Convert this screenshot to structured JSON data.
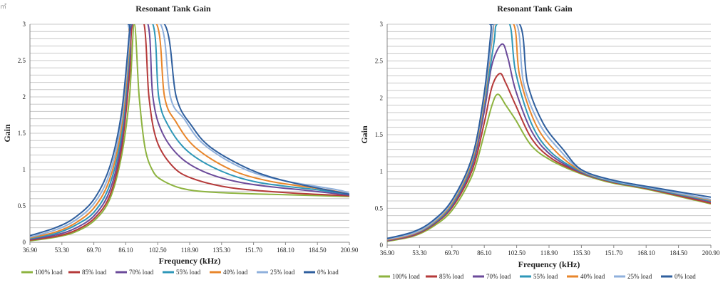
{
  "chart_data": [
    {
      "type": "line",
      "title": "Resonant Tank Gain",
      "xlabel": "Frequency (kHz)",
      "ylabel": "Gain",
      "ylim": [
        0,
        3
      ],
      "xlim": [
        36.9,
        200.9
      ],
      "yticks": [
        "0",
        "0.5",
        "1",
        "1.5",
        "2",
        "2.5",
        "3"
      ],
      "xticks": [
        "36.90",
        "53.30",
        "69.70",
        "86.10",
        "102.50",
        "118.90",
        "135.30",
        "151.70",
        "168.10",
        "184.50",
        "200.90"
      ],
      "grid": true,
      "legend": "bottom",
      "series": [
        {
          "name": "100% load",
          "color": "#8db33f",
          "values": [
            [
              36.9,
              0.02
            ],
            [
              50,
              0.07
            ],
            [
              60,
              0.14
            ],
            [
              70,
              0.3
            ],
            [
              78,
              0.6
            ],
            [
              84,
              1.2
            ],
            [
              88,
              2.0
            ],
            [
              90.5,
              3.0
            ],
            [
              93,
              2.0
            ],
            [
              96,
              1.3
            ],
            [
              100,
              0.98
            ],
            [
              105,
              0.85
            ],
            [
              115,
              0.74
            ],
            [
              130,
              0.69
            ],
            [
              160,
              0.66
            ],
            [
              200.9,
              0.63
            ]
          ]
        },
        {
          "name": "85% load",
          "color": "#b53a3a",
          "values": [
            [
              36.9,
              0.03
            ],
            [
              50,
              0.08
            ],
            [
              60,
              0.16
            ],
            [
              70,
              0.33
            ],
            [
              78,
              0.65
            ],
            [
              84,
              1.3
            ],
            [
              88,
              2.3
            ],
            [
              89.6,
              3.0
            ],
            [
              95.5,
              3.0
            ],
            [
              98,
              2.0
            ],
            [
              102,
              1.4
            ],
            [
              110,
              1.05
            ],
            [
              120,
              0.88
            ],
            [
              140,
              0.75
            ],
            [
              170,
              0.68
            ],
            [
              200.9,
              0.64
            ]
          ]
        },
        {
          "name": "70% load",
          "color": "#6b4a9a",
          "values": [
            [
              36.9,
              0.04
            ],
            [
              50,
              0.1
            ],
            [
              60,
              0.19
            ],
            [
              70,
              0.37
            ],
            [
              78,
              0.72
            ],
            [
              84,
              1.4
            ],
            [
              88,
              2.5
            ],
            [
              89.3,
              3.0
            ],
            [
              97.5,
              3.0
            ],
            [
              100,
              2.0
            ],
            [
              105,
              1.5
            ],
            [
              115,
              1.15
            ],
            [
              130,
              0.93
            ],
            [
              150,
              0.8
            ],
            [
              180,
              0.71
            ],
            [
              200.9,
              0.65
            ]
          ]
        },
        {
          "name": "55% load",
          "color": "#2e97b8",
          "values": [
            [
              36.9,
              0.05
            ],
            [
              50,
              0.12
            ],
            [
              60,
              0.23
            ],
            [
              70,
              0.42
            ],
            [
              78,
              0.8
            ],
            [
              84,
              1.5
            ],
            [
              88,
              2.6
            ],
            [
              89,
              3.0
            ],
            [
              100,
              3.0
            ],
            [
              103,
              2.0
            ],
            [
              108,
              1.6
            ],
            [
              118,
              1.25
            ],
            [
              135,
              0.98
            ],
            [
              155,
              0.82
            ],
            [
              185,
              0.72
            ],
            [
              200.9,
              0.66
            ]
          ]
        },
        {
          "name": "40% load",
          "color": "#e8862b",
          "values": [
            [
              36.9,
              0.06
            ],
            [
              50,
              0.14
            ],
            [
              60,
              0.26
            ],
            [
              70,
              0.48
            ],
            [
              78,
              0.88
            ],
            [
              84,
              1.6
            ],
            [
              88,
              2.7
            ],
            [
              88.8,
              3.0
            ],
            [
              102,
              3.0
            ],
            [
              106,
              2.0
            ],
            [
              112,
              1.65
            ],
            [
              122,
              1.3
            ],
            [
              140,
              1.0
            ],
            [
              160,
              0.84
            ],
            [
              190,
              0.72
            ],
            [
              200.9,
              0.66
            ]
          ]
        },
        {
          "name": "25% load",
          "color": "#8fb0dc",
          "values": [
            [
              36.9,
              0.07
            ],
            [
              50,
              0.17
            ],
            [
              60,
              0.3
            ],
            [
              70,
              0.54
            ],
            [
              78,
              0.96
            ],
            [
              84,
              1.7
            ],
            [
              88,
              2.8
            ],
            [
              88.6,
              3.0
            ],
            [
              104,
              3.0
            ],
            [
              109,
              2.0
            ],
            [
              116,
              1.7
            ],
            [
              126,
              1.35
            ],
            [
              145,
              1.03
            ],
            [
              165,
              0.86
            ],
            [
              195,
              0.72
            ],
            [
              200.9,
              0.67
            ]
          ]
        },
        {
          "name": "0% load",
          "color": "#2f5f9e",
          "values": [
            [
              36.9,
              0.09
            ],
            [
              50,
              0.2
            ],
            [
              60,
              0.34
            ],
            [
              70,
              0.6
            ],
            [
              78,
              1.05
            ],
            [
              84,
              1.8
            ],
            [
              88,
              2.9
            ],
            [
              88.4,
              3.0
            ],
            [
              106,
              3.0
            ],
            [
              112,
              2.0
            ],
            [
              120,
              1.6
            ],
            [
              130,
              1.3
            ],
            [
              150,
              1.0
            ],
            [
              170,
              0.83
            ],
            [
              200.9,
              0.66
            ]
          ]
        }
      ]
    },
    {
      "type": "line",
      "title": "Resonant Tank Gain",
      "xlabel": "Frequency (kHz)",
      "ylabel": "Gain",
      "ylim": [
        0,
        3
      ],
      "xlim": [
        36.9,
        200.9
      ],
      "yticks": [
        "0",
        "0.5",
        "1",
        "1.5",
        "2",
        "2.5",
        "3"
      ],
      "xticks": [
        "36.90",
        "53.30",
        "69.70",
        "86.10",
        "102.50",
        "118.90",
        "135.30",
        "151.70",
        "168.10",
        "184.50",
        "200.90"
      ],
      "grid": true,
      "legend": "bottom",
      "series": [
        {
          "name": "100% load",
          "color": "#8db33f",
          "values": [
            [
              36.9,
              0.05
            ],
            [
              50,
              0.12
            ],
            [
              60,
              0.25
            ],
            [
              70,
              0.48
            ],
            [
              80,
              0.95
            ],
            [
              86,
              1.5
            ],
            [
              90,
              1.9
            ],
            [
              93,
              2.05
            ],
            [
              97,
              1.9
            ],
            [
              102,
              1.7
            ],
            [
              110,
              1.35
            ],
            [
              120,
              1.15
            ],
            [
              135,
              0.97
            ],
            [
              150,
              0.85
            ],
            [
              170,
              0.75
            ],
            [
              200.9,
              0.56
            ]
          ]
        },
        {
          "name": "85% load",
          "color": "#b53a3a",
          "values": [
            [
              36.9,
              0.06
            ],
            [
              50,
              0.13
            ],
            [
              60,
              0.27
            ],
            [
              70,
              0.52
            ],
            [
              80,
              1.02
            ],
            [
              86,
              1.65
            ],
            [
              90,
              2.15
            ],
            [
              94,
              2.33
            ],
            [
              97,
              2.2
            ],
            [
              102,
              1.9
            ],
            [
              110,
              1.45
            ],
            [
              120,
              1.18
            ],
            [
              135,
              0.98
            ],
            [
              150,
              0.86
            ],
            [
              170,
              0.76
            ],
            [
              200.9,
              0.57
            ]
          ]
        },
        {
          "name": "70% load",
          "color": "#6b4a9a",
          "values": [
            [
              36.9,
              0.06
            ],
            [
              50,
              0.14
            ],
            [
              60,
              0.28
            ],
            [
              70,
              0.54
            ],
            [
              80,
              1.08
            ],
            [
              86,
              1.8
            ],
            [
              90,
              2.45
            ],
            [
              95,
              2.73
            ],
            [
              98,
              2.55
            ],
            [
              102,
              2.1
            ],
            [
              110,
              1.55
            ],
            [
              120,
              1.22
            ],
            [
              135,
              0.99
            ],
            [
              150,
              0.87
            ],
            [
              170,
              0.77
            ],
            [
              200.9,
              0.59
            ]
          ]
        },
        {
          "name": "55% load",
          "color": "#2e97b8",
          "values": [
            [
              36.9,
              0.07
            ],
            [
              50,
              0.15
            ],
            [
              60,
              0.29
            ],
            [
              70,
              0.56
            ],
            [
              80,
              1.12
            ],
            [
              86,
              1.9
            ],
            [
              91,
              2.75
            ],
            [
              92.5,
              3.0
            ],
            [
              99,
              3.0
            ],
            [
              102,
              2.35
            ],
            [
              110,
              1.65
            ],
            [
              120,
              1.26
            ],
            [
              135,
              1.0
            ],
            [
              150,
              0.87
            ],
            [
              170,
              0.77
            ],
            [
              200.9,
              0.6
            ]
          ]
        },
        {
          "name": "40% load",
          "color": "#e8862b",
          "values": [
            [
              36.9,
              0.07
            ],
            [
              50,
              0.15
            ],
            [
              60,
              0.3
            ],
            [
              70,
              0.58
            ],
            [
              80,
              1.15
            ],
            [
              86,
              1.95
            ],
            [
              90.5,
              2.9
            ],
            [
              91.5,
              3.0
            ],
            [
              101,
              3.0
            ],
            [
              104,
              2.3
            ],
            [
              112,
              1.65
            ],
            [
              122,
              1.28
            ],
            [
              135,
              1.01
            ],
            [
              150,
              0.88
            ],
            [
              170,
              0.78
            ],
            [
              200.9,
              0.61
            ]
          ]
        },
        {
          "name": "25% load",
          "color": "#8fb0dc",
          "values": [
            [
              36.9,
              0.08
            ],
            [
              50,
              0.16
            ],
            [
              60,
              0.31
            ],
            [
              70,
              0.6
            ],
            [
              80,
              1.18
            ],
            [
              86,
              2.0
            ],
            [
              90.5,
              2.95
            ],
            [
              91,
              3.0
            ],
            [
              102.5,
              3.0
            ],
            [
              106,
              2.2
            ],
            [
              114,
              1.65
            ],
            [
              124,
              1.3
            ],
            [
              135,
              1.02
            ],
            [
              150,
              0.88
            ],
            [
              170,
              0.78
            ],
            [
              200.9,
              0.62
            ]
          ]
        },
        {
          "name": "0% load",
          "color": "#2f5f9e",
          "values": [
            [
              36.9,
              0.09
            ],
            [
              50,
              0.18
            ],
            [
              60,
              0.33
            ],
            [
              70,
              0.62
            ],
            [
              80,
              1.2
            ],
            [
              86,
              2.05
            ],
            [
              89.5,
              2.9
            ],
            [
              90,
              3.0
            ],
            [
              104,
              3.0
            ],
            [
              108,
              2.2
            ],
            [
              116,
              1.65
            ],
            [
              126,
              1.3
            ],
            [
              135,
              1.03
            ],
            [
              150,
              0.89
            ],
            [
              170,
              0.79
            ],
            [
              200.9,
              0.65
            ]
          ]
        }
      ]
    }
  ],
  "corner_mark": "㎡"
}
